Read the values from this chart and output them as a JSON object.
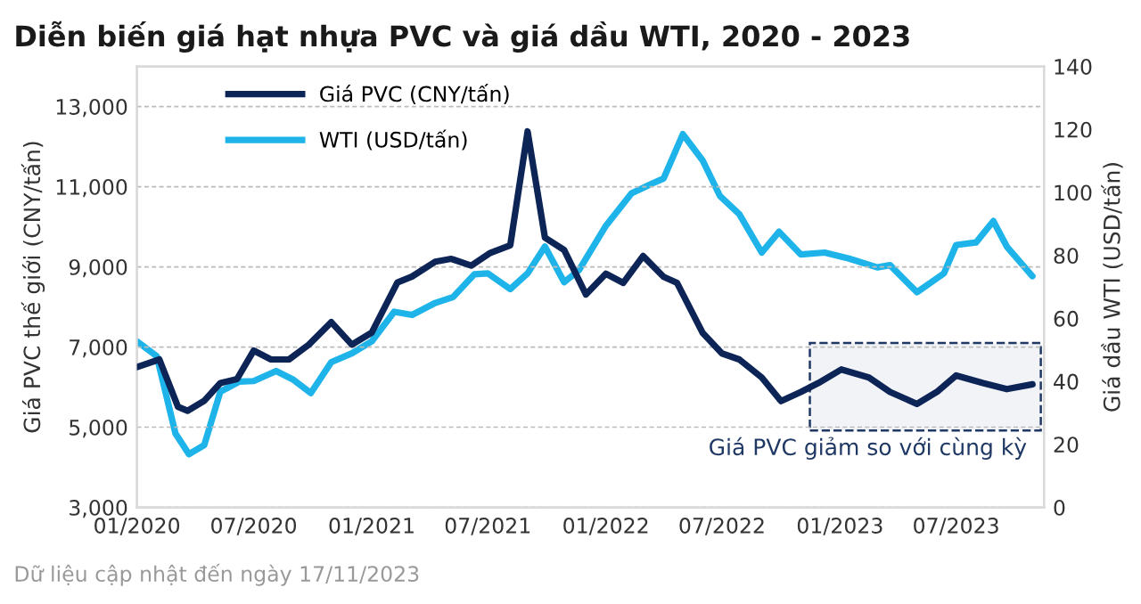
{
  "chart_data": {
    "type": "line",
    "title": "Diễn biến giá hạt nhựa PVC và giá dầu WTI, 2020 - 2023",
    "ylabel": "Giá PVC thế giới (CNY/tấn)",
    "y2label": "Giá dầu WTI (USD/tấn)",
    "series": [
      {
        "name": "Giá PVC (CNY/tấn)",
        "color": "#0d2457",
        "x": [
          "2020-01-01",
          "2020-02-05",
          "2020-03-05",
          "2020-03-20",
          "2020-04-15",
          "2020-05-10",
          "2020-06-05",
          "2020-07-01",
          "2020-07-28",
          "2020-08-25",
          "2020-09-25",
          "2020-10-30",
          "2020-12-01",
          "2021-01-01",
          "2021-02-10",
          "2021-03-05",
          "2021-04-10",
          "2021-05-05",
          "2021-06-05",
          "2021-07-05",
          "2021-08-05",
          "2021-09-01",
          "2021-09-28",
          "2021-10-28",
          "2021-12-01",
          "2022-01-01",
          "2022-01-28",
          "2022-02-28",
          "2022-04-01",
          "2022-04-22",
          "2022-06-01",
          "2022-07-01",
          "2022-07-28",
          "2022-09-01",
          "2022-10-01",
          "2022-11-01",
          "2022-11-28",
          "2023-01-03",
          "2023-02-15",
          "2023-03-20",
          "2023-05-01",
          "2023-06-01",
          "2023-07-01",
          "2023-08-12",
          "2023-09-18",
          "2023-10-28"
        ],
        "values": [
          6500,
          6690,
          5510,
          5410,
          5660,
          6100,
          6200,
          6910,
          6690,
          6690,
          7060,
          7620,
          7060,
          7360,
          8610,
          8760,
          9130,
          9200,
          9030,
          9350,
          9540,
          12380,
          9730,
          9420,
          8310,
          8830,
          8600,
          9270,
          8750,
          8600,
          7350,
          6840,
          6690,
          6240,
          5650,
          5880,
          6100,
          6440,
          6240,
          5880,
          5580,
          5880,
          6290,
          6100,
          5950,
          6070
        ]
      },
      {
        "name": "WTI (USD/tấn)",
        "color": "#1eb4ea",
        "axis": "y2",
        "x": [
          "2020-01-01",
          "2020-02-01",
          "2020-03-01",
          "2020-03-22",
          "2020-04-15",
          "2020-05-10",
          "2020-06-08",
          "2020-07-01",
          "2020-08-05",
          "2020-09-01",
          "2020-09-28",
          "2020-10-30",
          "2020-12-01",
          "2021-01-01",
          "2021-02-05",
          "2021-03-05",
          "2021-04-10",
          "2021-05-08",
          "2021-06-10",
          "2021-07-01",
          "2021-08-05",
          "2021-09-01",
          "2021-09-28",
          "2021-10-28",
          "2021-11-20",
          "2022-01-01",
          "2022-02-10",
          "2022-03-15",
          "2022-04-01",
          "2022-05-01",
          "2022-06-01",
          "2022-06-28",
          "2022-07-28",
          "2022-09-01",
          "2022-09-28",
          "2022-11-01",
          "2022-12-08",
          "2023-01-15",
          "2023-02-28",
          "2023-03-20",
          "2023-05-01",
          "2023-06-12",
          "2023-07-01",
          "2023-08-01",
          "2023-08-28",
          "2023-09-18",
          "2023-10-28"
        ],
        "values": [
          52.7,
          48.0,
          23.5,
          16.9,
          19.8,
          36.7,
          39.9,
          40.1,
          43.3,
          40.5,
          36.3,
          46.1,
          48.9,
          52.7,
          62.1,
          61.1,
          64.9,
          66.8,
          74.0,
          74.3,
          69.3,
          74.3,
          82.8,
          71.5,
          75.3,
          89.4,
          99.7,
          102.9,
          104.4,
          118.5,
          110.1,
          98.8,
          93.1,
          80.9,
          87.5,
          80.3,
          80.9,
          79.0,
          76.2,
          76.9,
          68.3,
          74.3,
          83.3,
          84.1,
          90.9,
          82.8,
          73.4
        ]
      }
    ],
    "xlim": [
      "2020-01-01",
      "2023-11-15"
    ],
    "xticks": [
      {
        "value": "2020-01-01",
        "label": "01/2020"
      },
      {
        "value": "2020-07-01",
        "label": "07/2020"
      },
      {
        "value": "2021-01-01",
        "label": "01/2021"
      },
      {
        "value": "2021-07-01",
        "label": "07/2021"
      },
      {
        "value": "2022-01-01",
        "label": "01/2022"
      },
      {
        "value": "2022-07-01",
        "label": "07/2022"
      },
      {
        "value": "2023-01-01",
        "label": "01/2023"
      },
      {
        "value": "2023-07-01",
        "label": "07/2023"
      }
    ],
    "ylim": [
      3000,
      14000
    ],
    "yticks": [
      {
        "value": 3000,
        "label": "3,000"
      },
      {
        "value": 5000,
        "label": "5,000"
      },
      {
        "value": 7000,
        "label": "7,000"
      },
      {
        "value": 9000,
        "label": "9,000"
      },
      {
        "value": 11000,
        "label": "11,000"
      },
      {
        "value": 13000,
        "label": "13,000"
      }
    ],
    "y2lim": [
      0,
      140
    ],
    "y2ticks": [
      0,
      20,
      40,
      60,
      80,
      100,
      120,
      140
    ],
    "bands": [
      {
        "axis": "x",
        "from": "2022-11-15",
        "to": "2023-11-10",
        "label": "Giá PVC giảm so với cùng kỳ",
        "color": "#f2f3f6"
      }
    ],
    "grid": "y",
    "legend": "top left",
    "line_style": "solid",
    "marker": "none",
    "annotations": [
      "Dữ liệu cập nhật đến ngày 17/11/2023"
    ]
  }
}
